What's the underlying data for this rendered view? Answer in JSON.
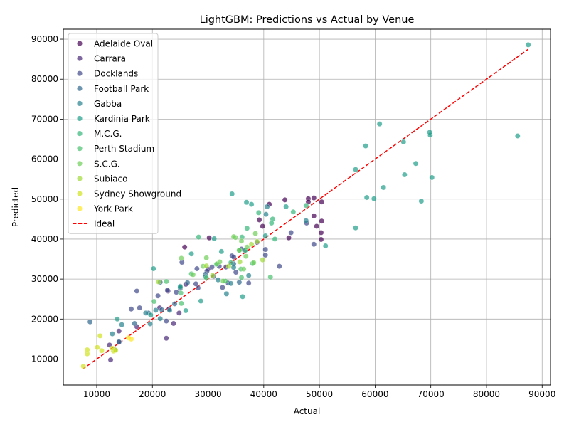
{
  "chart_data": {
    "type": "scatter",
    "title": "LightGBM: Predictions vs Actual by Venue",
    "xlabel": "Actual",
    "ylabel": "Predicted",
    "xlim": [
      4000,
      91500
    ],
    "ylim": [
      3500,
      92500
    ],
    "xticks": [
      10000,
      20000,
      30000,
      40000,
      50000,
      60000,
      70000,
      80000,
      90000
    ],
    "yticks": [
      10000,
      20000,
      30000,
      40000,
      50000,
      60000,
      70000,
      80000,
      90000
    ],
    "grid": true,
    "legend_position": "upper-left",
    "ideal_line": {
      "name": "Ideal",
      "from": [
        7500,
        7500
      ],
      "to": [
        87500,
        87500
      ],
      "color": "#ff0000"
    },
    "series": [
      {
        "name": "Adelaide Oval",
        "color": "#440154",
        "points": [
          [
            41000,
            48700
          ],
          [
            43800,
            49800
          ],
          [
            48000,
            50100
          ],
          [
            49000,
            50300
          ],
          [
            49000,
            45800
          ],
          [
            49500,
            43200
          ],
          [
            50400,
            44500
          ],
          [
            50300,
            41600
          ],
          [
            50300,
            39900
          ],
          [
            44500,
            40300
          ],
          [
            39800,
            43200
          ],
          [
            39200,
            44800
          ],
          [
            25800,
            38000
          ],
          [
            30200,
            40300
          ],
          [
            48000,
            49300
          ],
          [
            50400,
            49300
          ]
        ]
      },
      {
        "name": "Carrara",
        "color": "#482878",
        "points": [
          [
            12500,
            9800
          ],
          [
            12300,
            13500
          ],
          [
            14000,
            14200
          ],
          [
            17200,
            18100
          ],
          [
            22500,
            15200
          ],
          [
            23800,
            18900
          ],
          [
            21300,
            22800
          ],
          [
            22800,
            27000
          ],
          [
            24800,
            21500
          ],
          [
            23000,
            22500
          ],
          [
            14000,
            17000
          ],
          [
            26000,
            28700
          ],
          [
            30000,
            32500
          ]
        ]
      },
      {
        "name": "Docklands",
        "color": "#3e4989",
        "points": [
          [
            16200,
            22500
          ],
          [
            17700,
            22800
          ],
          [
            17200,
            27000
          ],
          [
            21000,
            25800
          ],
          [
            22700,
            27200
          ],
          [
            24300,
            26700
          ],
          [
            25300,
            34200
          ],
          [
            28000,
            32600
          ],
          [
            28200,
            27800
          ],
          [
            30700,
            33000
          ],
          [
            32000,
            33200
          ],
          [
            32600,
            27900
          ],
          [
            33200,
            33000
          ],
          [
            34300,
            35800
          ],
          [
            34600,
            35500
          ],
          [
            35000,
            31700
          ],
          [
            36000,
            37500
          ],
          [
            36600,
            37200
          ],
          [
            38800,
            39200
          ],
          [
            40300,
            37400
          ],
          [
            40300,
            36000
          ],
          [
            42800,
            33200
          ],
          [
            44900,
            41600
          ],
          [
            47700,
            44000
          ],
          [
            49000,
            38700
          ],
          [
            37300,
            29000
          ],
          [
            33600,
            29000
          ],
          [
            22500,
            19500
          ],
          [
            31000,
            30700
          ],
          [
            29800,
            32000
          ],
          [
            27800,
            28800
          ],
          [
            25000,
            27700
          ]
        ]
      },
      {
        "name": "Football Park",
        "color": "#31688e",
        "points": [
          [
            8800,
            19300
          ],
          [
            14000,
            14300
          ],
          [
            16800,
            18900
          ],
          [
            19300,
            21500
          ],
          [
            21700,
            22300
          ],
          [
            24000,
            23800
          ],
          [
            21400,
            29200
          ],
          [
            29500,
            31200
          ],
          [
            26300,
            29100
          ],
          [
            35600,
            29200
          ],
          [
            34600,
            33800
          ]
        ]
      },
      {
        "name": "Gabba",
        "color": "#26828e",
        "points": [
          [
            12800,
            16300
          ],
          [
            14500,
            18600
          ],
          [
            18800,
            21500
          ],
          [
            19600,
            18800
          ],
          [
            21400,
            20100
          ],
          [
            20600,
            22200
          ],
          [
            23100,
            22200
          ],
          [
            25000,
            28200
          ],
          [
            29500,
            30600
          ],
          [
            31800,
            29800
          ],
          [
            33300,
            26300
          ],
          [
            34600,
            32900
          ],
          [
            37300,
            30900
          ],
          [
            40400,
            46200
          ],
          [
            40600,
            48100
          ],
          [
            47600,
            44600
          ],
          [
            34100,
            28900
          ]
        ]
      },
      {
        "name": "Kardinia Park",
        "color": "#1f9e89",
        "points": [
          [
            19700,
            21000
          ],
          [
            20200,
            32600
          ],
          [
            25000,
            28000
          ],
          [
            27000,
            36300
          ],
          [
            28700,
            24500
          ],
          [
            32400,
            36900
          ],
          [
            34300,
            51300
          ],
          [
            37800,
            48700
          ],
          [
            40300,
            40800
          ],
          [
            44000,
            48100
          ],
          [
            56500,
            42800
          ],
          [
            51100,
            38300
          ],
          [
            56500,
            57400
          ],
          [
            58500,
            50400
          ],
          [
            59800,
            50100
          ],
          [
            61500,
            52900
          ],
          [
            65300,
            56100
          ],
          [
            67300,
            58900
          ],
          [
            68300,
            49500
          ],
          [
            69900,
            66000
          ],
          [
            70200,
            55400
          ],
          [
            85600,
            65800
          ],
          [
            87500,
            88600
          ],
          [
            69800,
            66700
          ],
          [
            65100,
            64300
          ],
          [
            58300,
            63300
          ],
          [
            60800,
            68800
          ],
          [
            36900,
            49200
          ],
          [
            31100,
            40100
          ],
          [
            26000,
            22100
          ],
          [
            13700,
            20000
          ],
          [
            13300,
            12300
          ],
          [
            36200,
            25600
          ]
        ]
      },
      {
        "name": "M.C.G.",
        "color": "#35b779",
        "points": [
          [
            28300,
            40500
          ],
          [
            31500,
            33700
          ],
          [
            34100,
            34100
          ],
          [
            36100,
            40500
          ],
          [
            37000,
            42700
          ],
          [
            39100,
            46600
          ],
          [
            41600,
            45000
          ],
          [
            41400,
            44000
          ],
          [
            42000,
            40000
          ],
          [
            45300,
            46800
          ],
          [
            47600,
            48400
          ],
          [
            36700,
            37200
          ],
          [
            35600,
            37200
          ]
        ]
      },
      {
        "name": "Perth Stadium",
        "color": "#4ac16d",
        "points": [
          [
            20300,
            24400
          ],
          [
            22500,
            29400
          ],
          [
            25200,
            23900
          ],
          [
            25100,
            26500
          ],
          [
            33100,
            29500
          ],
          [
            36000,
            30400
          ],
          [
            35900,
            32500
          ],
          [
            38000,
            33900
          ],
          [
            41200,
            30500
          ],
          [
            27000,
            31300
          ],
          [
            29700,
            30300
          ]
        ]
      },
      {
        "name": "S.C.G.",
        "color": "#6ece58",
        "points": [
          [
            25200,
            35200
          ],
          [
            27300,
            31100
          ],
          [
            29100,
            33200
          ],
          [
            29700,
            35300
          ],
          [
            31600,
            33800
          ],
          [
            32100,
            34300
          ],
          [
            32700,
            29500
          ],
          [
            34900,
            40400
          ],
          [
            35600,
            37200
          ],
          [
            36000,
            39500
          ],
          [
            36400,
            32500
          ],
          [
            37000,
            38000
          ],
          [
            38200,
            34100
          ],
          [
            38500,
            41400
          ],
          [
            36800,
            35700
          ],
          [
            34600,
            40600
          ]
        ]
      },
      {
        "name": "Subiaco",
        "color": "#a0da39",
        "points": [
          [
            21100,
            29300
          ],
          [
            30800,
            30900
          ],
          [
            33700,
            33200
          ],
          [
            35700,
            34300
          ],
          [
            37800,
            38700
          ],
          [
            38800,
            39400
          ],
          [
            39800,
            34800
          ],
          [
            29700,
            33300
          ]
        ]
      },
      {
        "name": "Sydney Showground",
        "color": "#d0e11c",
        "points": [
          [
            7600,
            8200
          ],
          [
            8300,
            11300
          ],
          [
            8300,
            12300
          ],
          [
            10100,
            12900
          ],
          [
            10600,
            15800
          ],
          [
            10900,
            12100
          ],
          [
            13000,
            12000
          ],
          [
            12800,
            12700
          ],
          [
            13400,
            12200
          ]
        ]
      },
      {
        "name": "York Park",
        "color": "#fde725",
        "points": [
          [
            15700,
            15300
          ],
          [
            16200,
            15000
          ]
        ]
      }
    ]
  }
}
